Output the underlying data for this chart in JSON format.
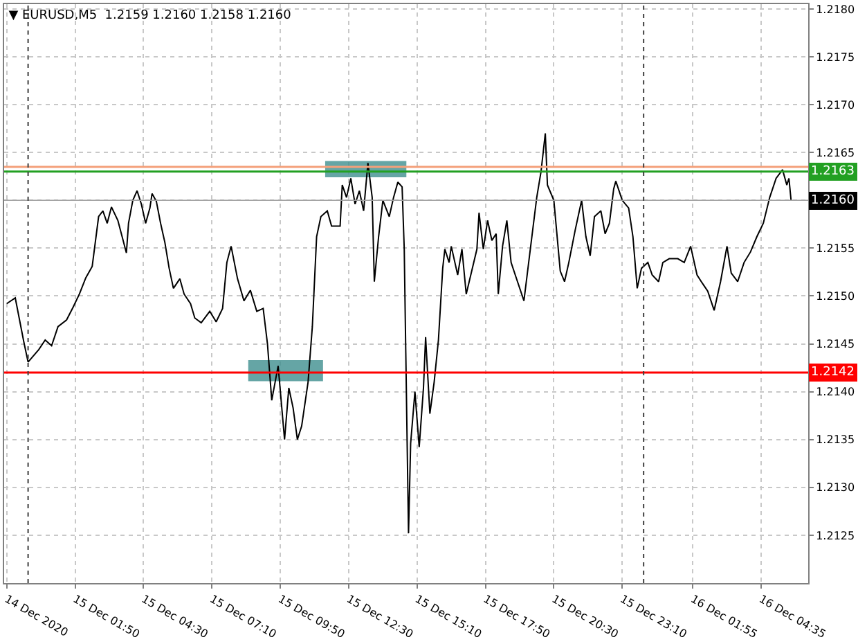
{
  "chart_data": {
    "type": "line",
    "title": "▼ EURUSD,M5  1.2159 1.2160 1.2158 1.2160",
    "x": [
      "2020-12-14T23:10",
      "2020-12-14T23:30",
      "2020-12-14T23:50",
      "2020-12-15T00:00",
      "2020-12-15T00:25",
      "2020-12-15T00:40",
      "2020-12-15T00:55",
      "2020-12-15T01:10",
      "2020-12-15T01:30",
      "2020-12-15T01:45",
      "2020-12-15T02:00",
      "2020-12-15T02:15",
      "2020-12-15T02:30",
      "2020-12-15T02:45",
      "2020-12-15T02:55",
      "2020-12-15T03:05",
      "2020-12-15T03:15",
      "2020-12-15T03:30",
      "2020-12-15T03:40",
      "2020-12-15T03:50",
      "2020-12-15T03:55",
      "2020-12-15T04:05",
      "2020-12-15T04:15",
      "2020-12-15T04:25",
      "2020-12-15T04:35",
      "2020-12-15T04:45",
      "2020-12-15T04:50",
      "2020-12-15T05:00",
      "2020-12-15T05:10",
      "2020-12-15T05:20",
      "2020-12-15T05:30",
      "2020-12-15T05:40",
      "2020-12-15T05:55",
      "2020-12-15T06:05",
      "2020-12-15T06:20",
      "2020-12-15T06:30",
      "2020-12-15T06:45",
      "2020-12-15T07:05",
      "2020-12-15T07:20",
      "2020-12-15T07:35",
      "2020-12-15T07:45",
      "2020-12-15T07:55",
      "2020-12-15T08:10",
      "2020-12-15T08:25",
      "2020-12-15T08:40",
      "2020-12-15T08:55",
      "2020-12-15T09:10",
      "2020-12-15T09:20",
      "2020-12-15T09:30",
      "2020-12-15T09:45",
      "2020-12-15T10:00",
      "2020-12-15T10:10",
      "2020-12-15T10:20",
      "2020-12-15T10:30",
      "2020-12-15T10:40",
      "2020-12-15T10:55",
      "2020-12-15T11:05",
      "2020-12-15T11:15",
      "2020-12-15T11:25",
      "2020-12-15T11:40",
      "2020-12-15T11:50",
      "2020-12-15T12:10",
      "2020-12-15T12:15",
      "2020-12-15T12:25",
      "2020-12-15T12:35",
      "2020-12-15T12:45",
      "2020-12-15T12:55",
      "2020-12-15T13:05",
      "2020-12-15T13:15",
      "2020-12-15T13:25",
      "2020-12-15T13:30",
      "2020-12-15T13:40",
      "2020-12-15T13:50",
      "2020-12-15T14:05",
      "2020-12-15T14:15",
      "2020-12-15T14:25",
      "2020-12-15T14:35",
      "2020-12-15T14:40",
      "2020-12-15T14:45",
      "2020-12-15T14:50",
      "2020-12-15T14:55",
      "2020-12-15T15:05",
      "2020-12-15T15:15",
      "2020-12-15T15:25",
      "2020-12-15T15:30",
      "2020-12-15T15:40",
      "2020-12-15T15:50",
      "2020-12-15T16:00",
      "2020-12-15T16:10",
      "2020-12-15T16:15",
      "2020-12-15T16:25",
      "2020-12-15T16:30",
      "2020-12-15T16:45",
      "2020-12-15T16:55",
      "2020-12-15T17:05",
      "2020-12-15T17:30",
      "2020-12-15T17:35",
      "2020-12-15T17:45",
      "2020-12-15T17:55",
      "2020-12-15T18:05",
      "2020-12-15T18:15",
      "2020-12-15T18:20",
      "2020-12-15T18:30",
      "2020-12-15T18:40",
      "2020-12-15T18:50",
      "2020-12-15T19:05",
      "2020-12-15T19:20",
      "2020-12-15T19:35",
      "2020-12-15T19:50",
      "2020-12-15T20:00",
      "2020-12-15T20:10",
      "2020-12-15T20:15",
      "2020-12-15T20:30",
      "2020-12-15T20:45",
      "2020-12-15T20:55",
      "2020-12-15T21:05",
      "2020-12-15T21:20",
      "2020-12-15T21:35",
      "2020-12-15T21:45",
      "2020-12-15T21:55",
      "2020-12-15T22:05",
      "2020-12-15T22:20",
      "2020-12-15T22:30",
      "2020-12-15T22:40",
      "2020-12-15T22:50",
      "2020-12-15T22:55",
      "2020-12-15T23:10",
      "2020-12-15T23:25",
      "2020-12-15T23:35",
      "2020-12-15T23:45",
      "2020-12-15T23:55",
      "2020-12-16T00:10",
      "2020-12-16T00:20",
      "2020-12-16T00:35",
      "2020-12-16T00:45",
      "2020-12-16T01:00",
      "2020-12-16T01:20",
      "2020-12-16T01:35",
      "2020-12-16T01:50",
      "2020-12-16T02:05",
      "2020-12-16T02:15",
      "2020-12-16T02:30",
      "2020-12-16T02:45",
      "2020-12-16T03:00",
      "2020-12-16T03:15",
      "2020-12-16T03:25",
      "2020-12-16T03:40",
      "2020-12-16T03:55",
      "2020-12-16T04:10",
      "2020-12-16T04:25",
      "2020-12-16T04:40",
      "2020-12-16T04:55",
      "2020-12-16T05:10",
      "2020-12-16T05:25",
      "2020-12-16T05:35",
      "2020-12-16T05:40",
      "2020-12-16T05:45"
    ],
    "series": [
      {
        "type": "area",
        "color": "#3e8e8e",
        "x": [
          "2020-12-15T08:35",
          "2020-12-15T11:30"
        ],
        "values": [
          null,
          null
        ],
        "lower": [
          1.21411,
          1.21411
        ],
        "upper": [
          1.21433,
          1.21433
        ]
      },
      {
        "type": "area",
        "color": "#3e8e8e",
        "x": [
          "2020-12-15T11:35",
          "2020-12-15T14:45"
        ],
        "values": [
          null,
          null
        ],
        "lower": [
          1.21624,
          1.21624
        ],
        "upper": [
          1.21641,
          1.21641
        ]
      },
      {
        "color": "#000000",
        "values": [
          1.21492,
          1.21498,
          1.21452,
          1.21431,
          1.21444,
          1.21454,
          1.21448,
          1.21468,
          1.21475,
          1.21488,
          1.21502,
          1.21519,
          1.21531,
          1.21583,
          1.21589,
          1.21576,
          1.21593,
          1.21579,
          1.21562,
          1.21545,
          1.21576,
          1.216,
          1.2161,
          1.21596,
          1.21576,
          1.21592,
          1.21607,
          1.21599,
          1.21576,
          1.21556,
          1.21529,
          1.21508,
          1.21518,
          1.21502,
          1.21492,
          1.21477,
          1.21472,
          1.21484,
          1.21473,
          1.21487,
          1.21535,
          1.21552,
          1.21518,
          1.21495,
          1.21506,
          1.21484,
          1.21487,
          1.2145,
          1.21391,
          1.21427,
          1.2135,
          1.21404,
          1.21383,
          1.2135,
          1.21364,
          1.2141,
          1.21468,
          1.21562,
          1.21583,
          1.21589,
          1.21573,
          1.21573,
          1.21616,
          1.21603,
          1.21623,
          1.21596,
          1.2161,
          1.21589,
          1.21639,
          1.21603,
          1.21515,
          1.21562,
          1.216,
          1.21583,
          1.21603,
          1.21619,
          1.21614,
          1.21549,
          1.214,
          1.21252,
          1.21346,
          1.214,
          1.21342,
          1.21404,
          1.21457,
          1.21377,
          1.2141,
          1.21454,
          1.21529,
          1.21549,
          1.21535,
          1.21552,
          1.21522,
          1.21549,
          1.21502,
          1.21549,
          1.21587,
          1.21549,
          1.21579,
          1.21558,
          1.21565,
          1.21502,
          1.21552,
          1.21579,
          1.21535,
          1.21515,
          1.21495,
          1.21549,
          1.21603,
          1.2163,
          1.2167,
          1.21616,
          1.216,
          1.21526,
          1.21515,
          1.21535,
          1.21569,
          1.216,
          1.21562,
          1.21542,
          1.21583,
          1.21589,
          1.21565,
          1.21576,
          1.21612,
          1.2162,
          1.216,
          1.21592,
          1.21562,
          1.21508,
          1.21529,
          1.21535,
          1.21522,
          1.21515,
          1.21535,
          1.21539,
          1.21539,
          1.21535,
          1.21552,
          1.21522,
          1.21515,
          1.21505,
          1.21485,
          1.21515,
          1.21552,
          1.21524,
          1.21515,
          1.21535,
          1.21546,
          1.21562,
          1.21576,
          1.21603,
          1.21623,
          1.21632,
          1.21616,
          1.21623,
          1.216
        ]
      }
    ],
    "xlim": [
      "2020-12-14T23:04",
      "2020-12-16T06:25"
    ],
    "xticks": [
      {
        "value": "2020-12-14T23:10",
        "label": "14 Dec 2020"
      },
      {
        "value": "2020-12-15T01:50",
        "label": "15 Dec 01:50"
      },
      {
        "value": "2020-12-15T04:30",
        "label": "15 Dec 04:30"
      },
      {
        "value": "2020-12-15T07:10",
        "label": "15 Dec 07:10"
      },
      {
        "value": "2020-12-15T09:50",
        "label": "15 Dec 09:50"
      },
      {
        "value": "2020-12-15T12:30",
        "label": "15 Dec 12:30"
      },
      {
        "value": "2020-12-15T15:10",
        "label": "15 Dec 15:10"
      },
      {
        "value": "2020-12-15T17:50",
        "label": "15 Dec 17:50"
      },
      {
        "value": "2020-12-15T20:30",
        "label": "15 Dec 20:30"
      },
      {
        "value": "2020-12-15T23:10",
        "label": "15 Dec 23:10"
      },
      {
        "value": "2020-12-16T01:55",
        "label": "16 Dec 01:55"
      },
      {
        "value": "2020-12-16T04:35",
        "label": "16 Dec 04:35"
      }
    ],
    "ylim": [
      1.212,
      1.21805
    ],
    "yticks": [
      {
        "value": 1.2125,
        "label": "1.2125"
      },
      {
        "value": 1.213,
        "label": "1.2130"
      },
      {
        "value": 1.2135,
        "label": "1.2135"
      },
      {
        "value": 1.214,
        "label": "1.2140"
      },
      {
        "value": 1.2145,
        "label": "1.2145"
      },
      {
        "value": 1.215,
        "label": "1.2150"
      },
      {
        "value": 1.2155,
        "label": "1.2155"
      },
      {
        "value": 1.216,
        "label": null
      },
      {
        "value": 1.2165,
        "label": "1.2165"
      },
      {
        "value": 1.217,
        "label": "1.2170"
      },
      {
        "value": 1.2175,
        "label": "1.2175"
      },
      {
        "value": 1.218,
        "label": "1.2180"
      }
    ],
    "ref_lines": [
      {
        "axis": "y",
        "value": 1.2142,
        "label": "1.2142",
        "color": "#ff0000",
        "line_style": "solid"
      },
      {
        "axis": "y",
        "value": 1.21635,
        "color": "#f4a07a",
        "line_style": "solid"
      },
      {
        "axis": "y",
        "value": 1.2163,
        "label": "1.2163",
        "color": "#22a022",
        "line_style": "solid"
      },
      {
        "axis": "y",
        "value": 1.216,
        "label": "1.2160",
        "color": "#a0a0a0",
        "line_style": "solid"
      },
      {
        "axis": "x",
        "value": "2020-12-15T00:00",
        "color": "#404040",
        "line_style": "dotted"
      },
      {
        "axis": "x",
        "value": "2020-12-16T00:00",
        "color": "#404040",
        "line_style": "dotted"
      }
    ],
    "grid": true,
    "marker": "none",
    "line_style": "solid"
  }
}
